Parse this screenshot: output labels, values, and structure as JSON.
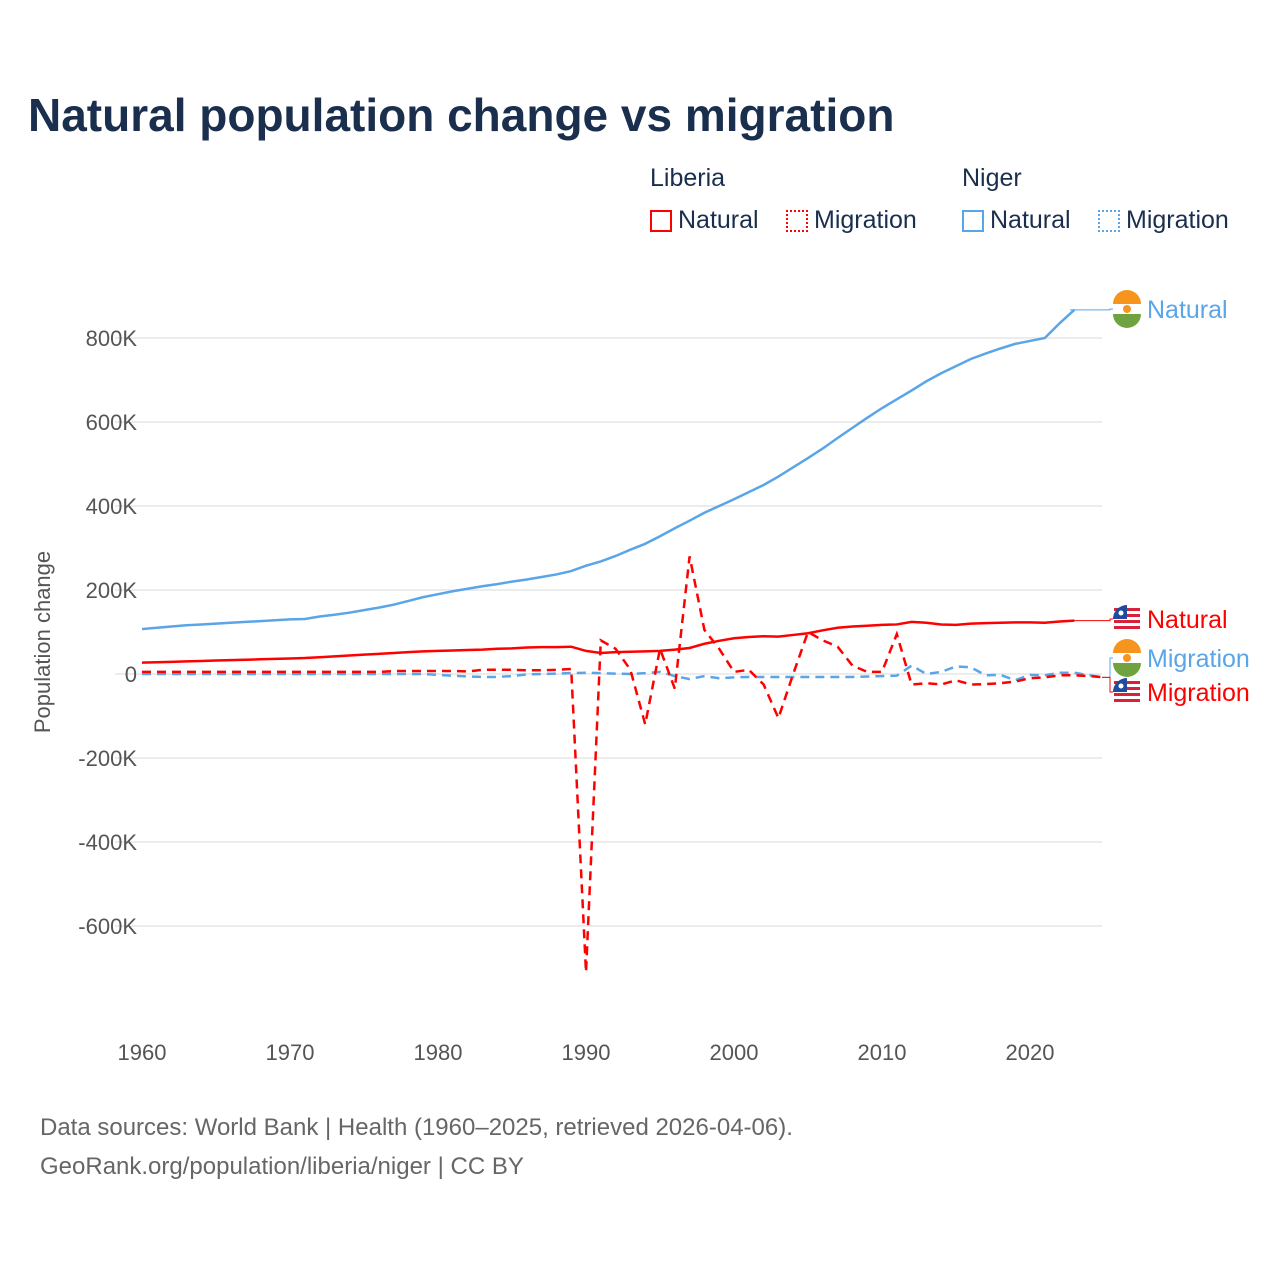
{
  "title": "Natural population change vs migration",
  "legend": {
    "groups": [
      {
        "name": "Liberia",
        "items": [
          "Natural",
          "Migration"
        ]
      },
      {
        "name": "Niger",
        "items": [
          "Natural",
          "Migration"
        ]
      }
    ]
  },
  "source": {
    "line1": "Data sources: World Bank | Health (1960–2025, retrieved 2026-04-06).",
    "line2": "GeoRank.org/population/liberia/niger | CC BY"
  },
  "colors": {
    "liberia": "#ff0000",
    "niger": "#5aa5e8"
  },
  "chart_data": {
    "type": "line",
    "title": "Natural population change vs migration",
    "xlabel": "",
    "ylabel": "Population change",
    "xlim": [
      1960,
      2025
    ],
    "ylim": [
      -750000,
      950000
    ],
    "xticks": [
      {
        "v": 1960,
        "label": "1960"
      },
      {
        "v": 1970,
        "label": "1970"
      },
      {
        "v": 1980,
        "label": "1980"
      },
      {
        "v": 1990,
        "label": "1990"
      },
      {
        "v": 2000,
        "label": "2000"
      },
      {
        "v": 2010,
        "label": "2010"
      },
      {
        "v": 2020,
        "label": "2020"
      }
    ],
    "yticks": [
      {
        "v": 800000,
        "label": "800K"
      },
      {
        "v": 600000,
        "label": "600K"
      },
      {
        "v": 400000,
        "label": "400K"
      },
      {
        "v": 200000,
        "label": "200K"
      },
      {
        "v": 0,
        "label": "0"
      },
      {
        "v": -200000,
        "label": "-200K"
      },
      {
        "v": -400000,
        "label": "-400K"
      },
      {
        "v": -600000,
        "label": "-600K"
      }
    ],
    "grid": true,
    "legend_position": "top-right",
    "series": [
      {
        "name": "Niger Natural",
        "country": "niger",
        "dash": false,
        "end_label": "Natural",
        "start": 1960,
        "values_k": [
          107,
          110,
          113,
          116,
          118,
          120,
          122,
          124,
          126,
          128,
          130,
          131,
          137,
          141,
          146,
          152,
          158,
          165,
          174,
          183,
          190,
          197,
          203,
          209,
          214,
          220,
          225,
          231,
          237,
          245,
          258,
          268,
          281,
          296,
          310,
          328,
          347,
          365,
          384,
          400,
          416,
          433,
          450,
          470,
          492,
          514,
          537,
          562,
          586,
          610,
          633,
          654,
          675,
          697,
          716,
          733,
          750,
          763,
          775,
          786,
          793,
          800,
          835,
          867
        ]
      },
      {
        "name": "Liberia Natural",
        "country": "liberia",
        "dash": false,
        "end_label": "Natural",
        "start": 1960,
        "values_k": [
          27,
          28,
          29,
          30,
          31,
          32,
          33,
          34,
          35,
          36,
          37,
          38,
          40,
          42,
          44,
          46,
          48,
          50,
          52,
          54,
          55,
          56,
          57,
          58,
          60,
          61,
          63,
          64,
          64,
          65,
          55,
          50,
          52,
          53,
          54,
          55,
          58,
          62,
          72,
          79,
          85,
          88,
          90,
          89,
          93,
          97,
          104,
          110,
          113,
          115,
          117,
          118,
          124,
          122,
          118,
          117,
          120,
          121,
          122,
          123,
          123,
          122,
          125,
          127
        ]
      },
      {
        "name": "Niger Migration",
        "country": "niger",
        "dash": true,
        "end_label": "Migration",
        "start": 1960,
        "values_k": [
          0,
          0,
          0,
          0,
          0,
          0,
          0,
          0,
          0,
          0,
          0,
          0,
          0,
          0,
          0,
          0,
          0,
          0,
          0,
          0,
          -2,
          -4,
          -6,
          -7,
          -7,
          -5,
          -1,
          0,
          1,
          2,
          3,
          2,
          1,
          0,
          2,
          5,
          -5,
          -12,
          -5,
          -10,
          -8,
          -7,
          -7,
          -7,
          -7,
          -7,
          -7,
          -7,
          -7,
          -6,
          -5,
          -4,
          20,
          0,
          5,
          18,
          16,
          -3,
          -2,
          -15,
          -2,
          -3,
          3,
          3,
          -3,
          -8
        ]
      },
      {
        "name": "Liberia Migration",
        "country": "liberia",
        "dash": true,
        "end_label": "Migration",
        "start": 1960,
        "values_k": [
          5,
          5,
          5,
          5,
          5,
          5,
          5,
          5,
          5,
          5,
          5,
          5,
          5,
          5,
          5,
          5,
          5,
          7,
          7,
          7,
          7,
          7,
          6,
          10,
          10,
          10,
          9,
          9,
          10,
          12,
          -710,
          80,
          60,
          10,
          -120,
          60,
          -35,
          280,
          105,
          60,
          5,
          10,
          -25,
          -105,
          0,
          100,
          80,
          65,
          20,
          5,
          5,
          95,
          -25,
          -22,
          -25,
          -15,
          -25,
          -24,
          -22,
          -18,
          -10,
          -8,
          -3,
          -3,
          -5,
          -8
        ]
      }
    ]
  }
}
